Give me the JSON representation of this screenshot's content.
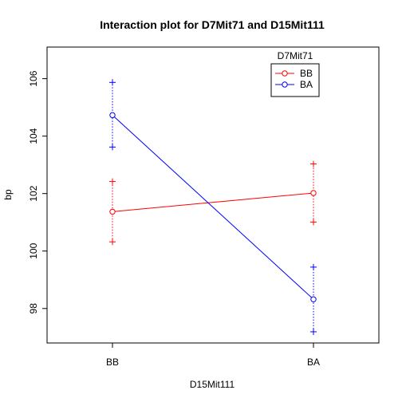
{
  "chart_data": {
    "type": "line",
    "title": "Interaction plot for D7Mit71 and D15Mit111",
    "xlabel": "D15Mit111",
    "ylabel": "bp",
    "categories": [
      "BB",
      "BA"
    ],
    "ylim": [
      96.8,
      107.1
    ],
    "yticks": [
      98,
      100,
      102,
      104,
      106
    ],
    "grid": false,
    "legend": {
      "title": "D7Mit71",
      "placement": "top-right"
    },
    "series": [
      {
        "name": "BB",
        "color": "#ff0000",
        "values": [
          101.37,
          102.02
        ],
        "upper": [
          102.42,
          103.03
        ],
        "lower": [
          100.32,
          101.01
        ]
      },
      {
        "name": "BA",
        "color": "#0000ff",
        "values": [
          104.73,
          98.32
        ],
        "upper": [
          105.87,
          99.44
        ],
        "lower": [
          103.62,
          97.19
        ]
      }
    ]
  }
}
